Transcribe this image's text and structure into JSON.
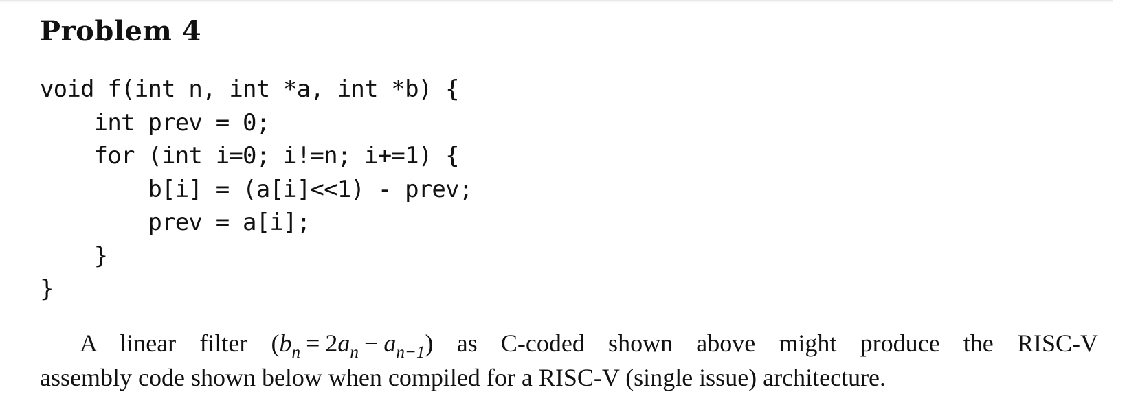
{
  "problem": {
    "title": "Problem 4"
  },
  "code": {
    "lines": [
      "void f(int n, int *a, int *b) {",
      "    int prev = 0;",
      "    for (int i=0; i!=n; i+=1) {",
      "        b[i] = (a[i]<<1) - prev;",
      "        prev = a[i];",
      "    }",
      "}"
    ]
  },
  "description": {
    "before_formula": "A linear filter (",
    "formula": {
      "lhs_var": "b",
      "lhs_sub": "n",
      "eq": "=",
      "coef": "2",
      "a1_var": "a",
      "a1_sub": "n",
      "minus": "−",
      "a2_var": "a",
      "a2_sub": "n−1"
    },
    "after_formula": ") as C-coded shown above might produce the RISC-V",
    "line2": "assembly code shown below when compiled for a RISC-V (single issue) architecture."
  }
}
